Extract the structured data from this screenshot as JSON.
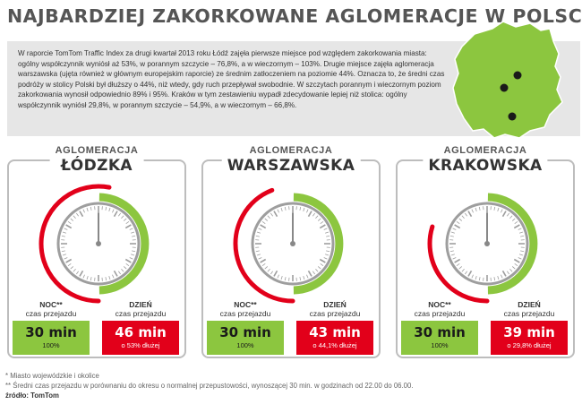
{
  "title": "NAJBARDZIEJ ZAKORKOWANE AGLOMERACJE W POLSCE*",
  "intro": "W raporcie TomTom Traffic Index za drugi kwartał 2013 roku Łódź zajęła pierwsze miejsce pod względem zakorkowania miasta: ogólny współczynnik wyniósł aż 53%, w porannym szczycie – 76,8%, a w wieczornym – 103%. Drugie miejsce zajęła aglomeracja warszawska (ujęta również w głównym europejskim raporcie) ze średnim zatłoczeniem na poziomie 44%. Oznacza to, że średni czas podróży w stolicy Polski był dłuższy o 44%, niż wtedy, gdy ruch przepływał swobodnie. W szczytach porannym i wieczornym poziom zakorkowania wynosił odpowiednio 89% i 95%. Kraków w tym zestawieniu wypadł zdecydowanie lepiej niż stolica: ogólny współczynnik wyniósł 29,8%, w porannym szczycie – 54,9%, a w wieczornym – 66,8%.",
  "colors": {
    "green": "#8cc63f",
    "red": "#e2001a",
    "grey": "#bdbdbd"
  },
  "cards": [
    {
      "small": "AGLOMERACJA",
      "big": "ŁÓDZKA",
      "night_label": "NOC**",
      "day_label": "DZIEŃ",
      "sub_label": "czas przejazdu",
      "night_value": "30 min",
      "night_sub": "100%",
      "day_value": "46 min",
      "day_sub": "o 53% dłużej",
      "extra_fraction": 0.53
    },
    {
      "small": "AGLOMERACJA",
      "big": "WARSZAWSKA",
      "night_label": "NOC**",
      "day_label": "DZIEŃ",
      "sub_label": "czas przejazdu",
      "night_value": "30 min",
      "night_sub": "100%",
      "day_value": "43 min",
      "day_sub": "o 44,1% dłużej",
      "extra_fraction": 0.441
    },
    {
      "small": "AGLOMERACJA",
      "big": "KRAKOWSKA",
      "night_label": "NOC**",
      "day_label": "DZIEŃ",
      "sub_label": "czas przejazdu",
      "night_value": "30 min",
      "night_sub": "100%",
      "day_value": "39 min",
      "day_sub": "o 29,8% dłużej",
      "extra_fraction": 0.298
    }
  ],
  "footnotes": {
    "note1": "* Miasto wojewódzkie i okolice",
    "note2": "** Średni czas przejazdu w porównaniu do okresu o normalnej przepustowości, wynoszącej 30 min. w godzinach od 22.00 do 06.00.",
    "source": "źródło: TomTom"
  }
}
